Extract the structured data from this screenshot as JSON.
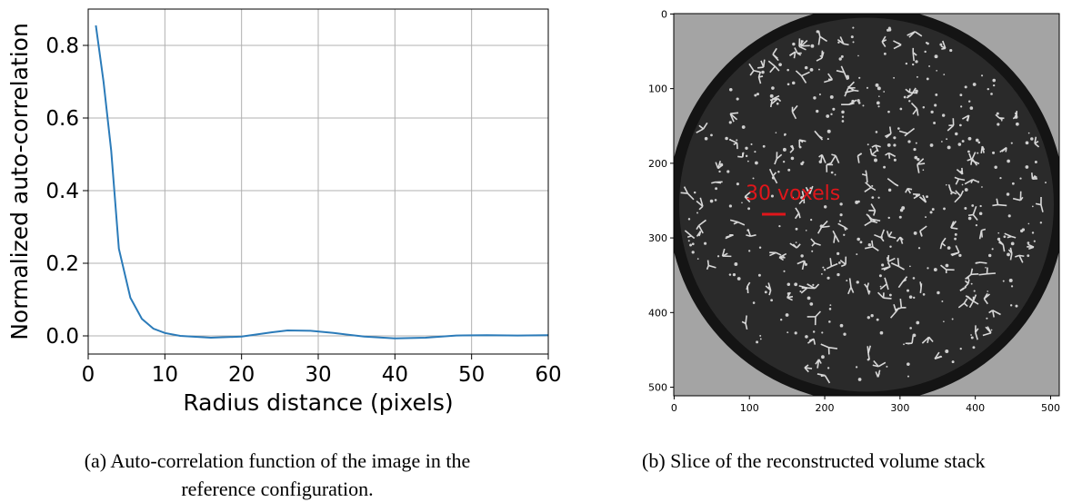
{
  "chart_data": [
    {
      "type": "line",
      "xlabel": "Radius distance (pixels)",
      "ylabel": "Normalized auto-correlation",
      "x": [
        1,
        2,
        3,
        4,
        5.5,
        7,
        8.5,
        10,
        12,
        16,
        20,
        24,
        26,
        29,
        32,
        36,
        40,
        44,
        48,
        52,
        56,
        60
      ],
      "values": [
        0.855,
        0.7,
        0.51,
        0.24,
        0.105,
        0.047,
        0.02,
        0.008,
        0.0,
        -0.005,
        -0.002,
        0.01,
        0.015,
        0.014,
        0.008,
        -0.002,
        -0.007,
        -0.005,
        0.001,
        0.002,
        0.001,
        0.002
      ],
      "color": "#2b7bb9",
      "xlim": [
        0,
        60
      ],
      "ylim": [
        -0.05,
        0.9
      ],
      "xticks": [
        0,
        10,
        20,
        30,
        40,
        50,
        60
      ],
      "yticks": [
        {
          "value": 0,
          "label": "0.0"
        },
        0.2,
        0.4,
        0.6,
        0.8
      ],
      "grid": true
    },
    {
      "type": "image",
      "annotation": "30 voxels",
      "xlim": [
        -0.5,
        511.5
      ],
      "ylim": [
        511.5,
        -0.5
      ],
      "xticks": [
        0,
        100,
        200,
        300,
        400,
        500
      ],
      "yticks": [
        0,
        100,
        200,
        300,
        400,
        500
      ]
    }
  ],
  "captions": {
    "a": [
      "(a) Auto-correlation function of the image in the",
      "reference configuration."
    ],
    "b": [
      "(b) Slice of the reconstructed volume stack"
    ]
  }
}
